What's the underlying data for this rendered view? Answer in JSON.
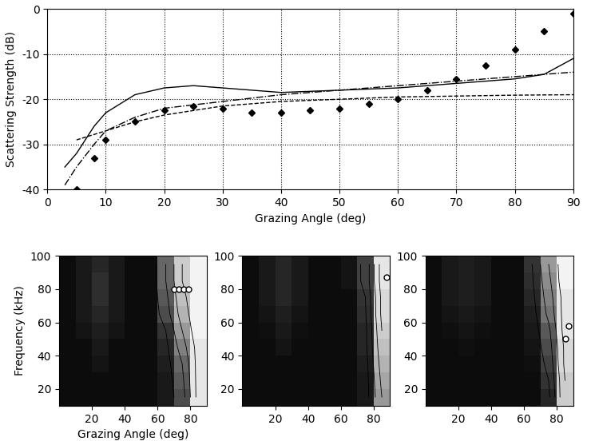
{
  "chart_data": [
    {
      "type": "line",
      "x_label": "Grazing Angle (deg)",
      "y_label": "Scattering Strength (dB)",
      "xlim": [
        0,
        90
      ],
      "xticks": [
        0,
        10,
        20,
        30,
        40,
        50,
        60,
        70,
        80,
        90
      ],
      "ylim": [
        -40,
        0
      ],
      "yticks": [
        -40,
        -30,
        -20,
        -10,
        0
      ],
      "grid": true,
      "series": [
        {
          "color": "#000000",
          "line_style": "solid",
          "marker": "none",
          "x": [
            3,
            5,
            8,
            10,
            15,
            20,
            25,
            30,
            40,
            50,
            60,
            70,
            80,
            85,
            90
          ],
          "values": [
            -35,
            -32,
            -26,
            -23,
            -19,
            -17.5,
            -17,
            -17.5,
            -18.5,
            -18,
            -17.5,
            -16.5,
            -15.5,
            -14.5,
            -11
          ]
        },
        {
          "color": "#000000",
          "line_style": "dashdot",
          "marker": "none",
          "x": [
            3,
            5,
            8,
            10,
            15,
            20,
            30,
            40,
            50,
            60,
            70,
            80,
            90
          ],
          "values": [
            -39,
            -35,
            -30,
            -27,
            -24,
            -22,
            -20.5,
            -19,
            -18,
            -17,
            -16,
            -15,
            -14
          ]
        },
        {
          "color": "#000000",
          "line_style": "dashed",
          "marker": "none",
          "x": [
            5,
            10,
            15,
            20,
            30,
            40,
            50,
            60,
            70,
            80,
            90
          ],
          "values": [
            -29,
            -27,
            -25,
            -23.5,
            -21.5,
            -20.5,
            -20,
            -19.5,
            -19.3,
            -19.1,
            -19
          ]
        },
        {
          "color": "#000000",
          "line_style": "none",
          "marker": "diamond",
          "x": [
            5,
            8,
            10,
            15,
            20,
            25,
            30,
            35,
            40,
            45,
            50,
            55,
            60,
            65,
            70,
            75,
            80,
            85,
            90
          ],
          "values": [
            -40,
            -33,
            -29,
            -25,
            -22.5,
            -21.5,
            -22,
            -23,
            -23,
            -22.5,
            -22,
            -21,
            -20,
            -18,
            -15.5,
            -12.5,
            -9,
            -5,
            -1
          ]
        }
      ]
    },
    {
      "type": "heatmap",
      "x_label": "Grazing Angle (deg)",
      "y_label": "Frequency (kHz)",
      "xlim": [
        0,
        90
      ],
      "xticks": [
        20,
        40,
        60,
        80
      ],
      "ylim": [
        10,
        100
      ],
      "yticks": [
        20,
        40,
        60,
        80,
        100
      ],
      "zlim": [
        0,
        1
      ],
      "x": [
        5,
        15,
        25,
        35,
        45,
        55,
        65,
        75,
        85
      ],
      "y": [
        15,
        25,
        35,
        45,
        55,
        65,
        75,
        85,
        95
      ],
      "cells": [
        [
          0.05,
          0.05,
          0.05,
          0.05,
          0.05,
          0.05,
          0.1,
          0.3,
          0.9
        ],
        [
          0.05,
          0.05,
          0.05,
          0.05,
          0.05,
          0.05,
          0.1,
          0.35,
          0.9
        ],
        [
          0.05,
          0.05,
          0.08,
          0.05,
          0.05,
          0.05,
          0.12,
          0.4,
          0.9
        ],
        [
          0.05,
          0.05,
          0.1,
          0.05,
          0.05,
          0.05,
          0.15,
          0.5,
          0.9
        ],
        [
          0.05,
          0.08,
          0.12,
          0.08,
          0.05,
          0.05,
          0.2,
          0.6,
          0.95
        ],
        [
          0.05,
          0.1,
          0.15,
          0.1,
          0.05,
          0.05,
          0.3,
          0.7,
          0.95
        ],
        [
          0.05,
          0.1,
          0.18,
          0.1,
          0.05,
          0.05,
          0.35,
          0.75,
          0.95
        ],
        [
          0.05,
          0.1,
          0.18,
          0.1,
          0.05,
          0.05,
          0.4,
          0.8,
          0.95
        ],
        [
          0.05,
          0.1,
          0.15,
          0.1,
          0.05,
          0.05,
          0.4,
          0.8,
          0.95
        ]
      ],
      "points": {
        "x": [
          70,
          73,
          76,
          79
        ],
        "y": [
          80,
          80,
          80,
          80
        ]
      }
    },
    {
      "type": "heatmap",
      "xlim": [
        0,
        90
      ],
      "xticks": [
        20,
        40,
        60,
        80
      ],
      "ylim": [
        10,
        100
      ],
      "yticks": [
        20,
        40,
        60,
        80,
        100
      ],
      "zlim": [
        0,
        1
      ],
      "x": [
        5,
        15,
        25,
        35,
        45,
        55,
        65,
        75,
        85
      ],
      "y": [
        15,
        25,
        35,
        45,
        55,
        65,
        75,
        85,
        95
      ],
      "cells": [
        [
          0.05,
          0.05,
          0.05,
          0.05,
          0.05,
          0.05,
          0.05,
          0.1,
          0.6
        ],
        [
          0.05,
          0.05,
          0.05,
          0.05,
          0.05,
          0.05,
          0.05,
          0.1,
          0.65
        ],
        [
          0.05,
          0.05,
          0.05,
          0.05,
          0.05,
          0.05,
          0.05,
          0.12,
          0.7
        ],
        [
          0.05,
          0.05,
          0.08,
          0.05,
          0.05,
          0.05,
          0.05,
          0.15,
          0.75
        ],
        [
          0.05,
          0.06,
          0.1,
          0.06,
          0.05,
          0.05,
          0.05,
          0.15,
          0.8
        ],
        [
          0.05,
          0.08,
          0.12,
          0.08,
          0.05,
          0.05,
          0.05,
          0.18,
          0.85
        ],
        [
          0.05,
          0.1,
          0.15,
          0.1,
          0.05,
          0.05,
          0.05,
          0.2,
          0.85
        ],
        [
          0.05,
          0.1,
          0.15,
          0.1,
          0.05,
          0.05,
          0.08,
          0.25,
          0.9
        ],
        [
          0.05,
          0.1,
          0.15,
          0.1,
          0.05,
          0.05,
          0.08,
          0.25,
          0.9
        ]
      ],
      "points": {
        "x": [
          88
        ],
        "y": [
          87
        ]
      }
    },
    {
      "type": "heatmap",
      "xlim": [
        0,
        90
      ],
      "xticks": [
        20,
        40,
        60,
        80
      ],
      "ylim": [
        10,
        100
      ],
      "yticks": [
        20,
        40,
        60,
        80,
        100
      ],
      "zlim": [
        0,
        1
      ],
      "x": [
        5,
        15,
        25,
        35,
        45,
        55,
        65,
        75,
        85
      ],
      "y": [
        15,
        25,
        35,
        45,
        55,
        65,
        75,
        85,
        95
      ],
      "cells": [
        [
          0.05,
          0.05,
          0.05,
          0.05,
          0.05,
          0.05,
          0.05,
          0.15,
          0.8
        ],
        [
          0.05,
          0.05,
          0.05,
          0.05,
          0.05,
          0.05,
          0.05,
          0.2,
          0.8
        ],
        [
          0.05,
          0.05,
          0.05,
          0.05,
          0.05,
          0.05,
          0.06,
          0.25,
          0.85
        ],
        [
          0.05,
          0.05,
          0.06,
          0.05,
          0.05,
          0.05,
          0.08,
          0.3,
          0.85
        ],
        [
          0.05,
          0.06,
          0.08,
          0.06,
          0.05,
          0.05,
          0.1,
          0.35,
          0.9
        ],
        [
          0.05,
          0.08,
          0.1,
          0.08,
          0.05,
          0.05,
          0.12,
          0.45,
          0.9
        ],
        [
          0.05,
          0.1,
          0.12,
          0.1,
          0.05,
          0.05,
          0.15,
          0.5,
          0.9
        ],
        [
          0.05,
          0.1,
          0.12,
          0.1,
          0.05,
          0.05,
          0.18,
          0.55,
          0.95
        ],
        [
          0.05,
          0.1,
          0.12,
          0.1,
          0.05,
          0.05,
          0.2,
          0.6,
          0.95
        ]
      ],
      "points": {
        "x": [
          87,
          85
        ],
        "y": [
          58,
          50
        ]
      }
    }
  ]
}
